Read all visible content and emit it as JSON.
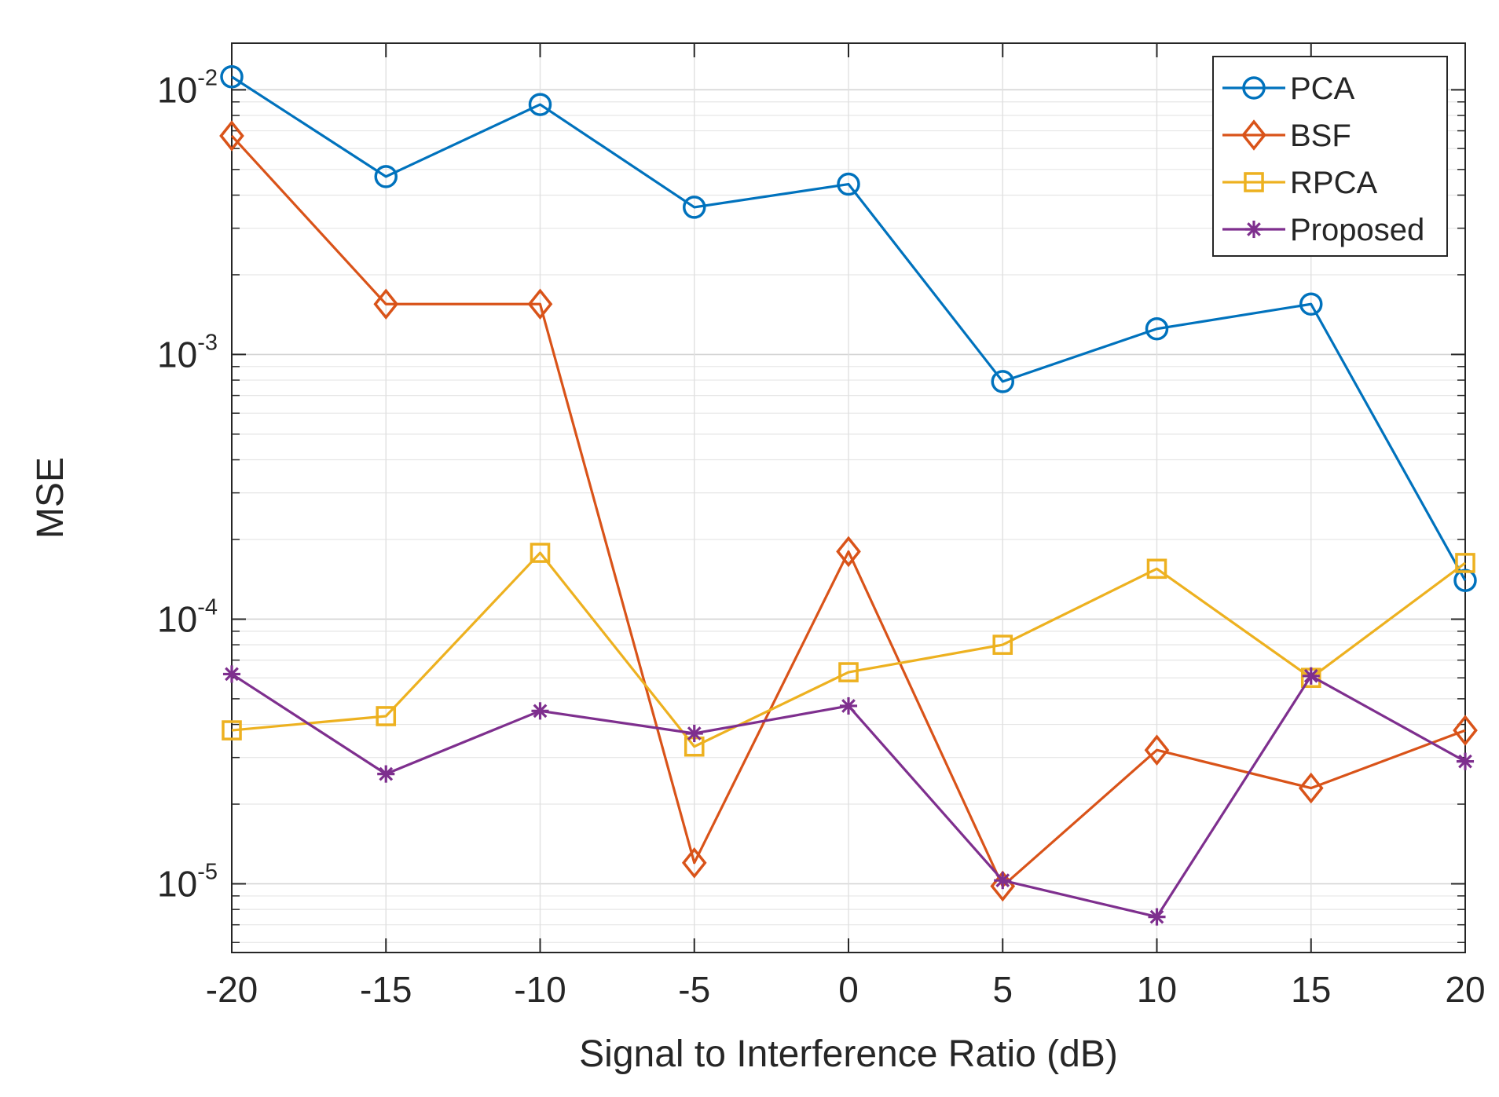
{
  "chart_data": {
    "type": "line",
    "title": "",
    "xlabel": "Signal to Interference Ratio (dB)",
    "ylabel": "MSE",
    "yscale": "log",
    "xlim": [
      -20,
      20
    ],
    "ylim": [
      5.5e-06,
      0.015
    ],
    "grid": true,
    "legend_position": "top-right",
    "x": [
      -20,
      -15,
      -10,
      -5,
      0,
      5,
      10,
      15,
      20
    ],
    "x_tick_labels": [
      "-20",
      "-15",
      "-10",
      "-5",
      "0",
      "5",
      "10",
      "15",
      "20"
    ],
    "y_ticks": [
      {
        "value": 0.01,
        "base": "10",
        "exponent": "-2"
      },
      {
        "value": 0.001,
        "base": "10",
        "exponent": "-3"
      },
      {
        "value": 0.0001,
        "base": "10",
        "exponent": "-4"
      },
      {
        "value": 1e-05,
        "base": "10",
        "exponent": "-5"
      }
    ],
    "series": [
      {
        "name": "PCA",
        "color": "#0072BD",
        "marker": "circle",
        "values": [
          0.0112,
          0.0047,
          0.0088,
          0.0036,
          0.0044,
          0.00079,
          0.00125,
          0.00155,
          0.00014
        ]
      },
      {
        "name": "BSF",
        "color": "#D95319",
        "marker": "diamond",
        "values": [
          0.0067,
          0.00155,
          0.00155,
          1.2e-05,
          0.00018,
          9.8e-06,
          3.2e-05,
          2.3e-05,
          3.8e-05
        ]
      },
      {
        "name": "RPCA",
        "color": "#EDB120",
        "marker": "square",
        "values": [
          3.8e-05,
          4.3e-05,
          0.000178,
          3.3e-05,
          6.3e-05,
          8e-05,
          0.000155,
          6e-05,
          0.000163
        ]
      },
      {
        "name": "Proposed",
        "color": "#7E2F8E",
        "marker": "asterisk",
        "values": [
          6.2e-05,
          2.6e-05,
          4.5e-05,
          3.7e-05,
          4.7e-05,
          1.03e-05,
          7.5e-06,
          6.1e-05,
          2.9e-05
        ]
      }
    ]
  }
}
